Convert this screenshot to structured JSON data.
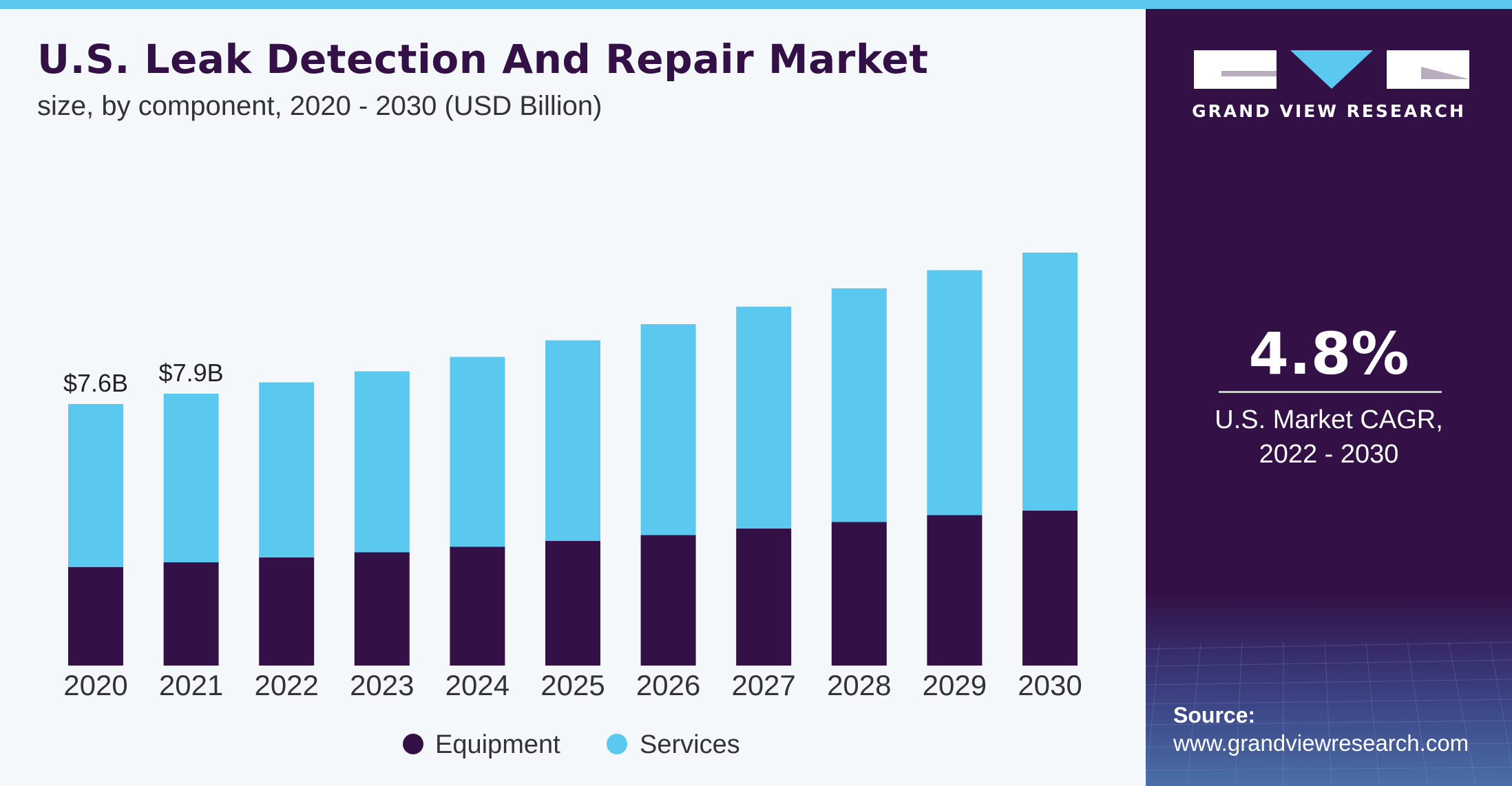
{
  "header": {
    "title": "U.S. Leak Detection And Repair Market",
    "subtitle": "size, by component, 2020 - 2030 (USD Billion)"
  },
  "chart_data": {
    "type": "bar",
    "stacked": true,
    "title": "U.S. Leak Detection And Repair Market",
    "subtitle": "size, by component, 2020 - 2030 (USD Billion)",
    "categories": [
      "2020",
      "2021",
      "2022",
      "2023",
      "2024",
      "2025",
      "2026",
      "2027",
      "2028",
      "2029",
      "2030"
    ],
    "series": [
      {
        "name": "Equipment",
        "color": "#331046",
        "values": [
          2.86,
          3.0,
          3.14,
          3.29,
          3.45,
          3.62,
          3.79,
          3.98,
          4.17,
          4.37,
          4.5
        ]
      },
      {
        "name": "Services",
        "color": "#5bc8f0",
        "values": [
          4.74,
          4.9,
          5.09,
          5.26,
          5.52,
          5.83,
          6.13,
          6.45,
          6.79,
          7.12,
          7.5
        ]
      }
    ],
    "data_labels": [
      {
        "category": "2020",
        "text": "$7.6B"
      },
      {
        "category": "2021",
        "text": "$7.9B"
      }
    ],
    "xlabel": "",
    "ylabel": "",
    "ylim": [
      0,
      12
    ],
    "grid": false,
    "legend": {
      "position": "bottom-center",
      "items": [
        "Equipment",
        "Services"
      ]
    }
  },
  "sidebar": {
    "brand_name": "GRAND VIEW RESEARCH",
    "cagr_value": "4.8%",
    "cagr_label_line1": "U.S. Market CAGR,",
    "cagr_label_line2": "2022 - 2030",
    "source_label": "Source:",
    "source_url": "www.grandviewresearch.com"
  },
  "colors": {
    "brand_dark": "#331046",
    "brand_light": "#5bc8f0",
    "background": "#f4f8fb"
  }
}
